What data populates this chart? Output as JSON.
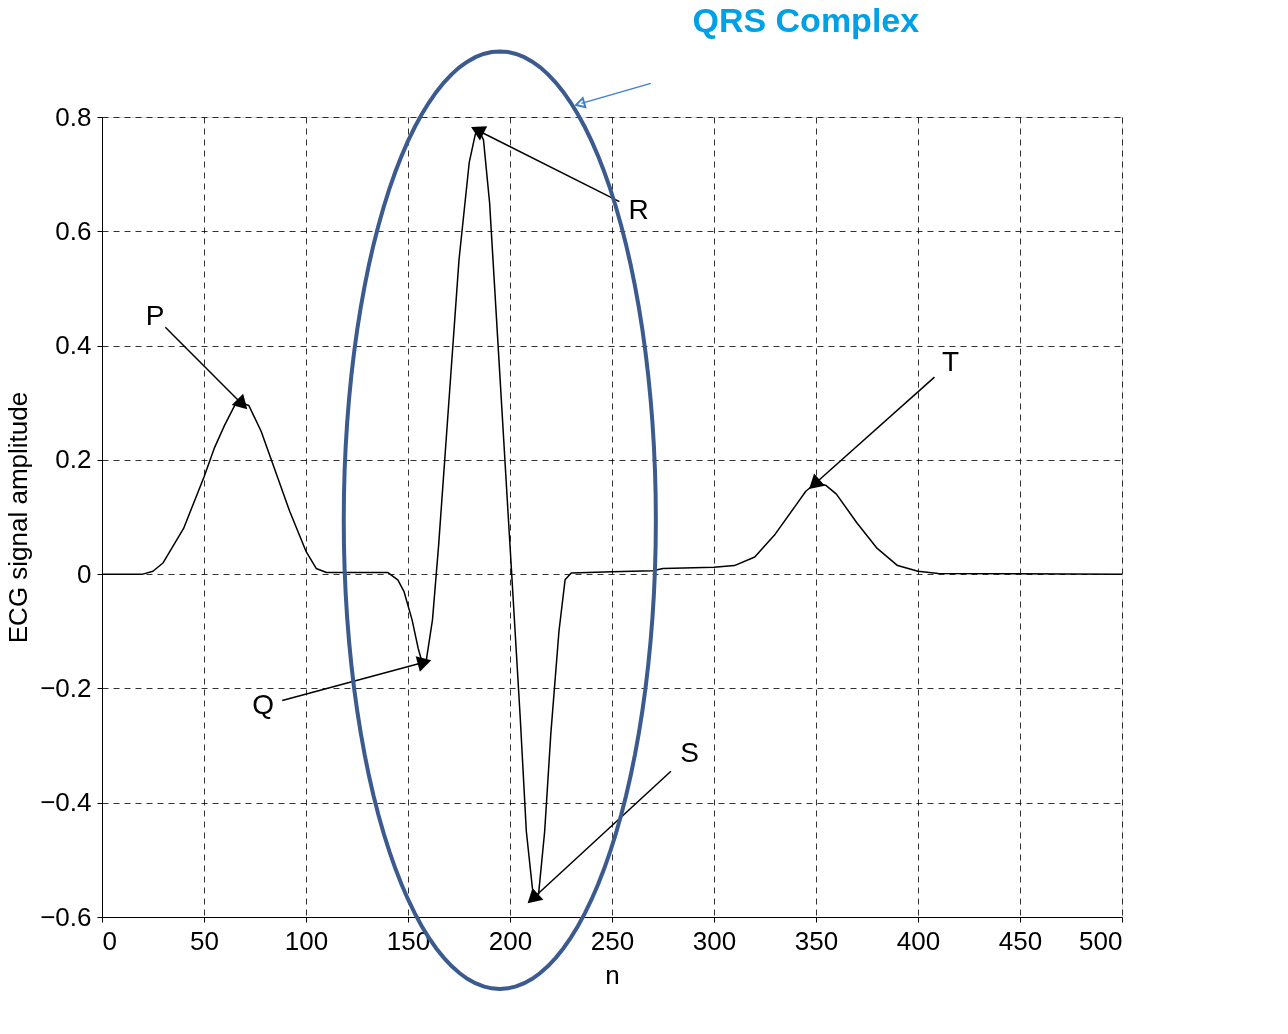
{
  "chart_data": {
    "type": "line",
    "xlabel": "n",
    "ylabel": "ECG signal amplitude",
    "x": [
      0,
      20,
      25,
      30,
      40,
      50,
      55,
      60,
      65,
      68,
      72,
      78,
      85,
      92,
      100,
      105,
      110,
      140,
      145,
      148,
      152,
      155,
      157,
      159,
      162,
      165,
      170,
      175,
      180,
      183,
      185,
      187,
      190,
      195,
      200,
      205,
      208,
      211,
      212,
      214,
      217,
      220,
      224,
      227,
      230,
      250,
      270,
      275,
      300,
      310,
      320,
      330,
      340,
      345,
      350,
      355,
      360,
      370,
      380,
      390,
      400,
      410,
      500
    ],
    "values": [
      0,
      0,
      0.005,
      0.02,
      0.08,
      0.17,
      0.22,
      0.26,
      0.295,
      0.3,
      0.295,
      0.25,
      0.18,
      0.11,
      0.04,
      0.01,
      0.003,
      0.003,
      -0.01,
      -0.03,
      -0.08,
      -0.13,
      -0.155,
      -0.15,
      -0.08,
      0.05,
      0.3,
      0.55,
      0.72,
      0.77,
      0.775,
      0.76,
      0.65,
      0.35,
      0.05,
      -0.25,
      -0.45,
      -0.55,
      -0.565,
      -0.56,
      -0.45,
      -0.28,
      -0.1,
      -0.01,
      0.002,
      0.004,
      0.006,
      0.01,
      0.012,
      0.015,
      0.03,
      0.07,
      0.12,
      0.145,
      0.16,
      0.155,
      0.14,
      0.09,
      0.045,
      0.015,
      0.005,
      0.001,
      0
    ],
    "color": "#000000",
    "xlim": [
      0,
      500
    ],
    "xticks": [
      0,
      50,
      100,
      150,
      200,
      250,
      300,
      350,
      400,
      450,
      500
    ],
    "ylim": [
      -0.6,
      0.8
    ],
    "yticks": [
      {
        "value": -0.6,
        "label": "−0.6"
      },
      {
        "value": -0.4,
        "label": "−0.4"
      },
      {
        "value": -0.2,
        "label": "−0.2"
      },
      0,
      0.2,
      0.4,
      0.6,
      0.8
    ],
    "grid": true,
    "annotations": [
      {
        "text": "P",
        "x": 68,
        "y": 0.3
      },
      {
        "text": "Q",
        "x": 157,
        "y": -0.155
      },
      {
        "text": "R",
        "x": 185,
        "y": 0.775
      },
      {
        "text": "S",
        "x": 212,
        "y": -0.565
      },
      {
        "text": "T",
        "x": 350,
        "y": 0.16
      },
      "QRS Complex"
    ]
  }
}
